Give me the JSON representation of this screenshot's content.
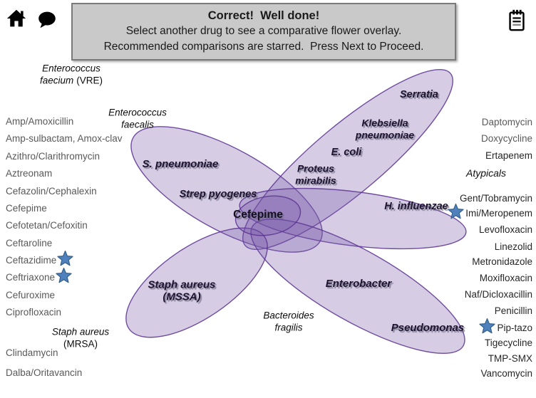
{
  "banner": {
    "title": "Correct!  Well done!",
    "line2": "Select another drug to see a comparative flower overlay.",
    "line3": "Recommended comparisons are starred.  Press Next to Proceed."
  },
  "center_drug": "Cefepime",
  "left_drugs": [
    {
      "label": "Amp/Amoxicillin"
    },
    {
      "label": "Amp-sulbactam, Amox-clav"
    },
    {
      "label": "Azithro/Clarithromycin"
    },
    {
      "label": "Aztreonam"
    },
    {
      "label": "Cefazolin/Cephalexin"
    },
    {
      "label": "Cefepime"
    },
    {
      "label": "Cefotetan/Cefoxitin"
    },
    {
      "label": "Ceftaroline"
    },
    {
      "label": "Ceftazidime",
      "starred": true
    },
    {
      "label": "Ceftriaxone",
      "starred": true
    },
    {
      "label": "Cefuroxime"
    },
    {
      "label": "Ciprofloxacin"
    },
    {
      "label": "Clindamycin"
    },
    {
      "label": "Dalba/Oritavancin"
    }
  ],
  "right_drugs": [
    {
      "label": "Daptomycin",
      "muted": true
    },
    {
      "label": "Doxycycline",
      "muted": true
    },
    {
      "label": "Ertapenem"
    },
    {
      "label": "Gent/Tobramycin"
    },
    {
      "label": "Imi/Meropenem",
      "starred": true
    },
    {
      "label": "Levofloxacin"
    },
    {
      "label": "Linezolid"
    },
    {
      "label": "Metronidazole"
    },
    {
      "label": "Moxifloxacin"
    },
    {
      "label": "Naf/Dicloxacillin"
    },
    {
      "label": "Penicillin"
    },
    {
      "label": "Pip-tazo",
      "starred": true
    },
    {
      "label": "Tigecycline"
    },
    {
      "label": "TMP-SMX"
    },
    {
      "label": "Vancomycin"
    }
  ],
  "organisms": {
    "covered": {
      "s_pneumoniae": "S. pneumoniae",
      "strep_pyogenes": "Strep pyogenes",
      "serratia": "Serratia",
      "klebsiella": [
        "Klebsiella",
        "pneumoniae"
      ],
      "e_coli": "E. coli",
      "proteus": [
        "Proteus",
        "mirabilis"
      ],
      "h_influenzae": "H. influenzae",
      "enterobacter": "Enterobacter",
      "pseudomonas": "Pseudomonas",
      "staph_mssa": [
        "Staph aureus",
        "(MSSA)"
      ]
    },
    "uncovered": {
      "vre": {
        "l1": "Enterococcus",
        "l2i": "faecium",
        "l2s": "(VRE)"
      },
      "faecalis": {
        "l1": "Enterococcus",
        "l2": "faecalis"
      },
      "atypicals": "Atypicals",
      "mrsa": {
        "l1": "Staph aureus",
        "l2s": "(MRSA)"
      },
      "bacteroides": {
        "l1": "Bacteroides",
        "l2": "fragilis"
      }
    }
  },
  "colors": {
    "petal_fill": "#7658a8",
    "petal_stroke": "#5b3191",
    "star_fill": "#4f81bd",
    "star_stroke": "#36618e",
    "muted_text": "#595959",
    "banner_bg": "#c9c9c9"
  }
}
